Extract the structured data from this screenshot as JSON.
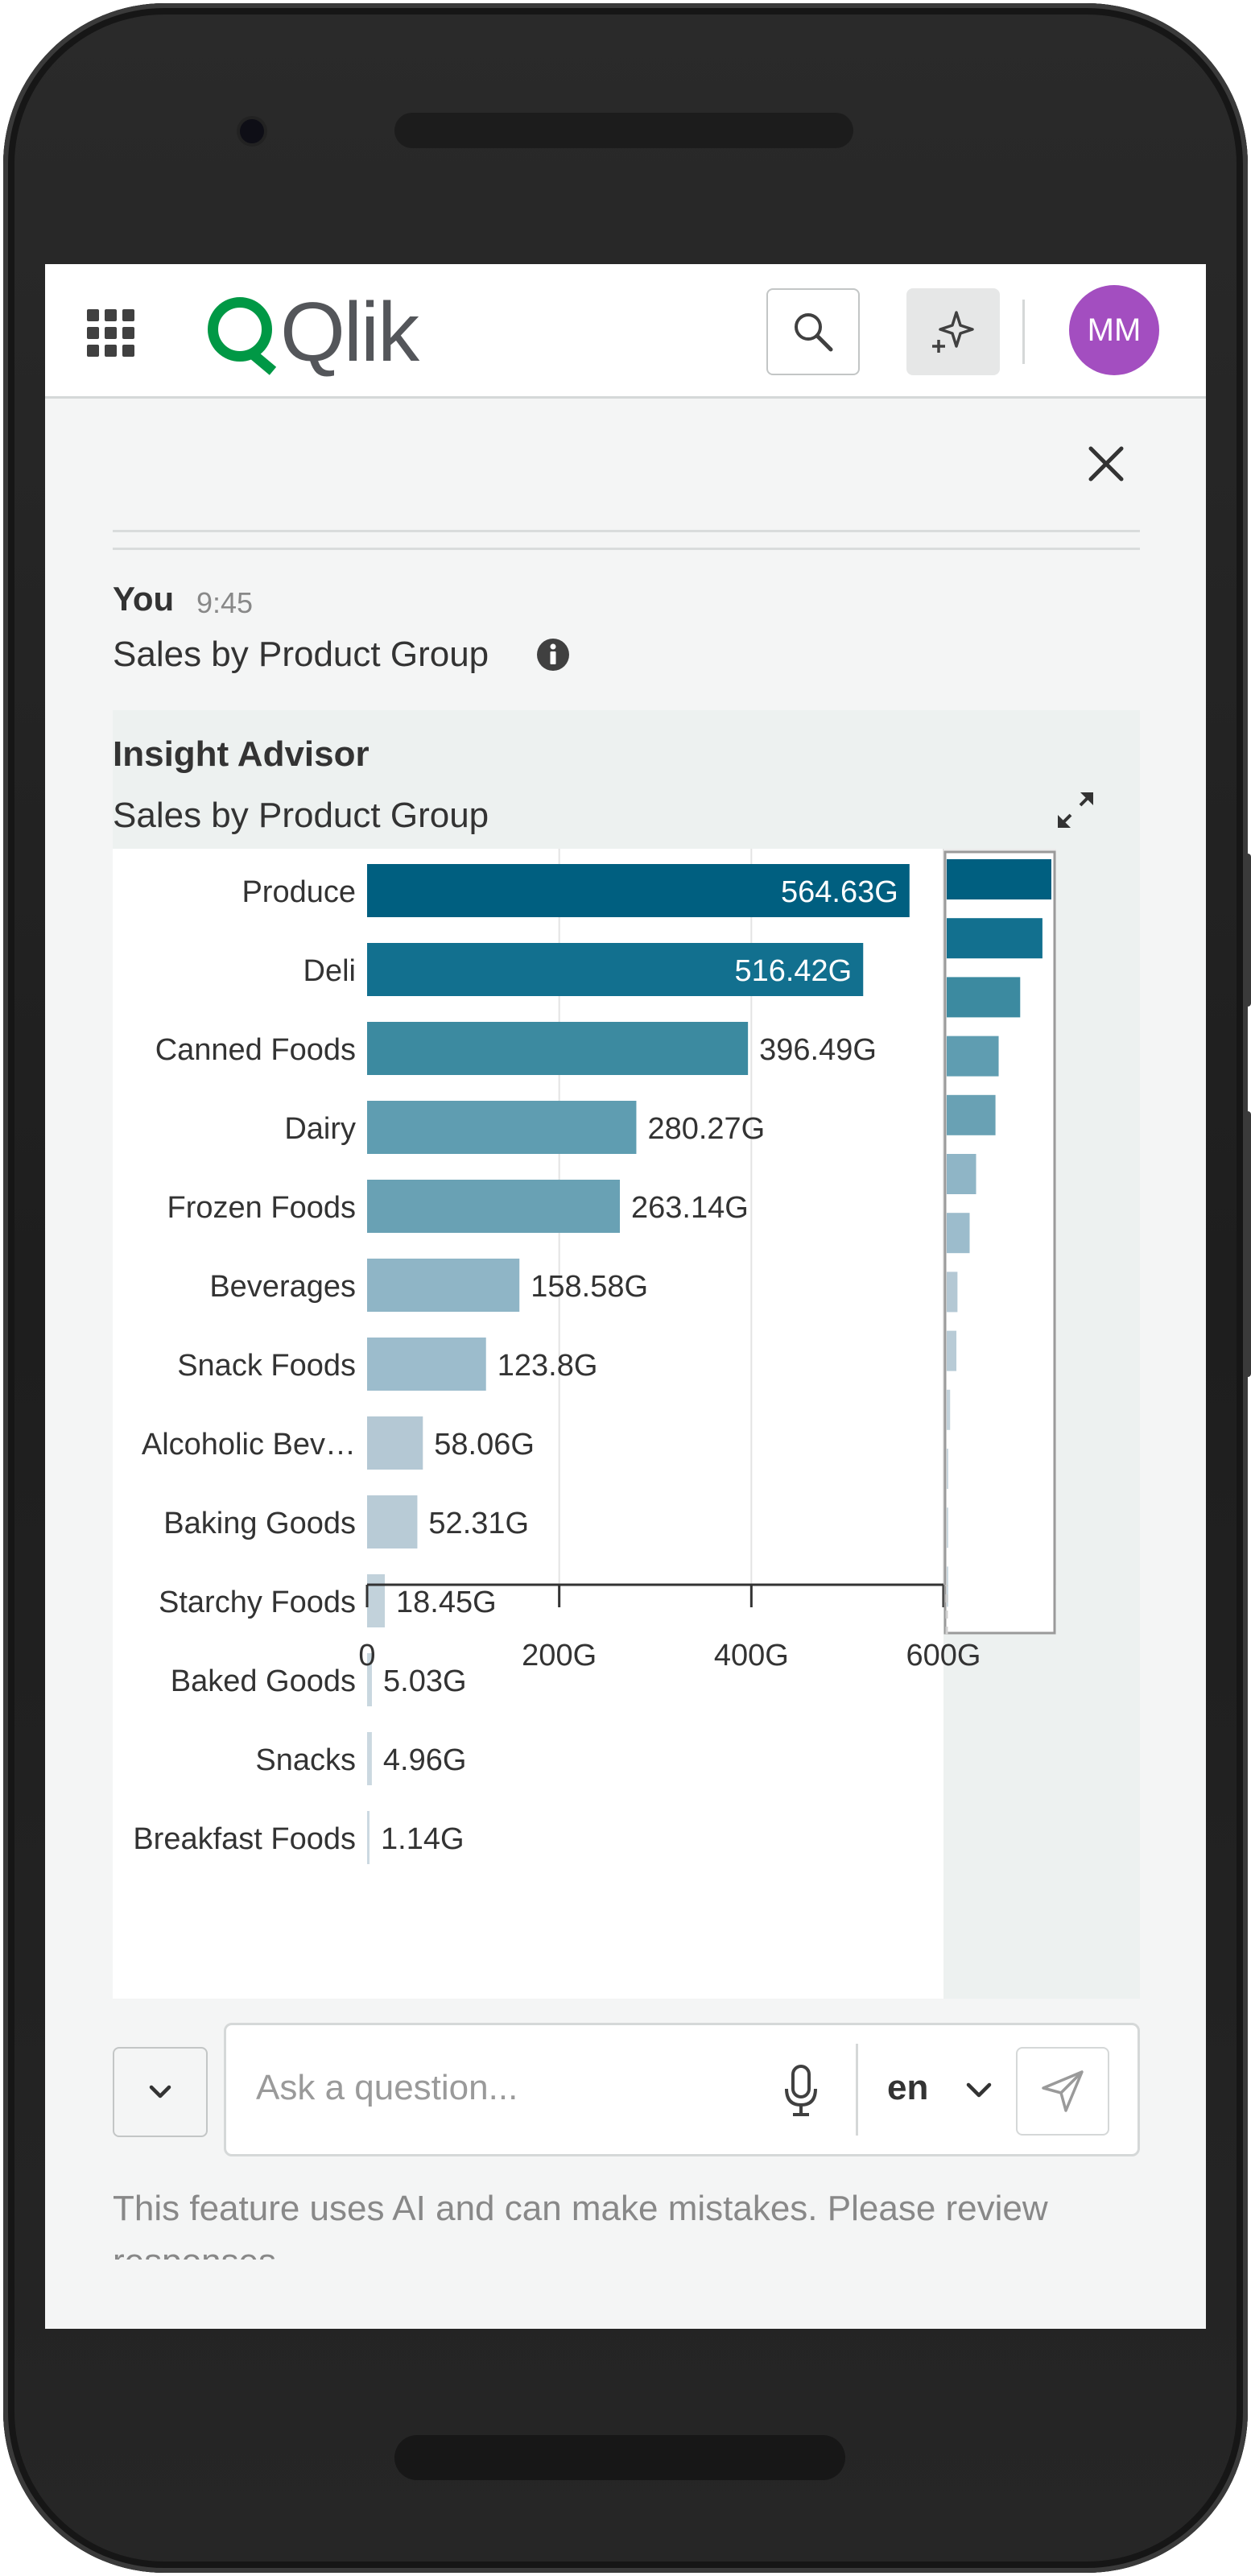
{
  "app": {
    "brand": "Qlik",
    "avatar_initials": "MM",
    "colors": {
      "brand_green": "#009845",
      "avatar": "#a34ec0",
      "accent": "#005f80"
    }
  },
  "header": {
    "menu_icon": "grid-menu-icon",
    "search_icon": "search-icon",
    "assistant_icon": "sparkle-icon"
  },
  "panel": {
    "close_icon": "close-icon"
  },
  "message": {
    "author": "You",
    "time": "9:45",
    "text": "Sales by Product Group",
    "info_icon": "info-icon"
  },
  "insight": {
    "title": "Insight Advisor",
    "subtitle": "Sales by Product Group",
    "expand_icon": "expand-icon"
  },
  "chart_data": {
    "type": "bar",
    "orientation": "horizontal",
    "title": "Sales by Product Group",
    "categories": [
      "Produce",
      "Deli",
      "Canned Foods",
      "Dairy",
      "Frozen Foods",
      "Beverages",
      "Snack Foods",
      "Alcoholic Bev…",
      "Baking Goods",
      "Starchy Foods",
      "Baked Goods",
      "Snacks",
      "Breakfast Foods"
    ],
    "values": [
      564.63,
      516.42,
      396.49,
      280.27,
      263.14,
      158.58,
      123.8,
      58.06,
      52.31,
      18.45,
      5.03,
      4.96,
      1.14
    ],
    "value_labels": [
      "564.63G",
      "516.42G",
      "396.49G",
      "280.27G",
      "263.14G",
      "158.58G",
      "123.8G",
      "58.06G",
      "52.31G",
      "18.45G",
      "5.03G",
      "4.96G",
      "1.14G"
    ],
    "colors": [
      "#005f80",
      "#12708f",
      "#3c8aa0",
      "#5f9db1",
      "#69a1b4",
      "#8fb5c6",
      "#9cbccc",
      "#b4c8d4",
      "#b8cbd6",
      "#c2d2db",
      "#c9d7df",
      "#cbd8e0",
      "#ccd9e1"
    ],
    "x_ticks": [
      "0",
      "200G",
      "400G",
      "600G"
    ],
    "xlim": [
      0,
      600
    ],
    "grid": true,
    "minimap": true
  },
  "input": {
    "placeholder": "Ask a question...",
    "language": "en",
    "dropdown_icon": "chevron-down-icon",
    "mic_icon": "microphone-icon",
    "send_icon": "send-icon"
  },
  "disclaimer": "This feature uses AI and can make mistakes. Please review responses."
}
